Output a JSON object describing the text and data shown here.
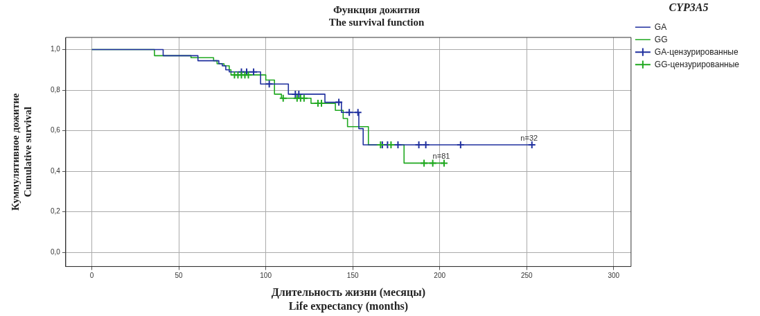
{
  "chart_data": {
    "type": "step",
    "title": "Функция дожития",
    "subtitle": "The survival function",
    "xlabel": "Длительность жизни (месяцы)\nLife expectancy (months)",
    "ylabel": "Куммулятивное дожитие\nCumulative survival",
    "legend_title": "CYP3A5",
    "legend": "top right",
    "grid": true,
    "line_style": "solid",
    "xlim": [
      -15,
      310
    ],
    "xticks": [
      0,
      50,
      100,
      150,
      200,
      250,
      300
    ],
    "ylim": [
      -0.07,
      1.06
    ],
    "yticks": [
      {
        "value": 0,
        "label": "0,0"
      },
      {
        "value": 0.2,
        "label": "0,2"
      },
      {
        "value": 0.4,
        "label": "0,4"
      },
      {
        "value": 0.6,
        "label": "0,6"
      },
      {
        "value": 0.8,
        "label": "0,8"
      },
      {
        "value": 1,
        "label": "1,0"
      }
    ],
    "series": [
      {
        "name": "GA",
        "color": "#1f2f9e",
        "x": [
          0,
          41,
          61,
          73,
          75,
          77,
          79,
          97,
          113,
          134,
          143.5,
          153.5,
          156,
          253
        ],
        "values": [
          1,
          0.97,
          0.945,
          0.93,
          0.92,
          0.9,
          0.89,
          0.83,
          0.78,
          0.74,
          0.69,
          0.61,
          0.53,
          0.53
        ]
      },
      {
        "name": "GG",
        "color": "#1fa81f",
        "x": [
          0,
          36,
          57,
          70,
          72,
          76,
          79,
          80,
          100,
          105,
          109,
          126,
          140,
          144.5,
          147,
          159,
          179.5,
          202.5
        ],
        "values": [
          1,
          0.97,
          0.96,
          0.945,
          0.93,
          0.92,
          0.9,
          0.875,
          0.85,
          0.78,
          0.76,
          0.735,
          0.7,
          0.66,
          0.62,
          0.53,
          0.44,
          0.44
        ]
      },
      {
        "name": "GA-цензурированные",
        "type": "scatter",
        "marker": "cross",
        "color": "#1f2f9e",
        "x": [
          86,
          89,
          93,
          102,
          117,
          119,
          142,
          148,
          153,
          167,
          170,
          176,
          188,
          192,
          212,
          253
        ],
        "values": [
          0.89,
          0.89,
          0.89,
          0.83,
          0.78,
          0.78,
          0.74,
          0.69,
          0.69,
          0.53,
          0.53,
          0.53,
          0.53,
          0.53,
          0.53,
          0.53
        ]
      },
      {
        "name": "GG-цензурированные",
        "type": "scatter",
        "marker": "cross",
        "color": "#1fa81f",
        "x": [
          82,
          84,
          86,
          88,
          90,
          110,
          118,
          120,
          122,
          130,
          132,
          166,
          172,
          191,
          196,
          202.5
        ],
        "values": [
          0.875,
          0.875,
          0.875,
          0.875,
          0.875,
          0.76,
          0.76,
          0.76,
          0.76,
          0.735,
          0.735,
          0.53,
          0.53,
          0.44,
          0.44,
          0.44
        ]
      }
    ],
    "annotations": [
      {
        "text": "n=32",
        "x": 253,
        "y": 0.53
      },
      {
        "text": "n=81",
        "x": 202.5,
        "y": 0.44
      }
    ]
  }
}
